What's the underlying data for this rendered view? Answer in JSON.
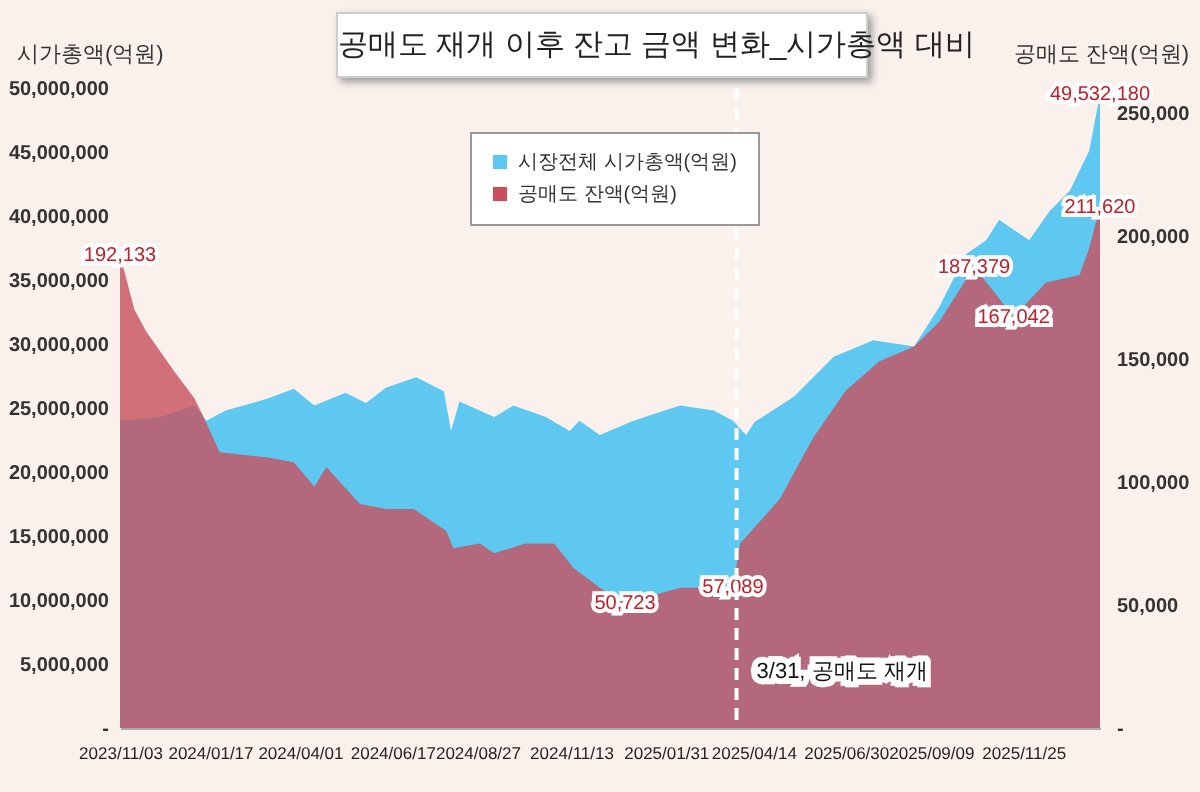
{
  "chart_data": {
    "type": "area",
    "title": "공매도 재개 이후 잔고 금액 변화_시가총액 대비",
    "ylabel": "시가총액(억원)",
    "y2label": "공매도 잔액(억원)",
    "legend": "top",
    "xlim": [
      "2023-11-03",
      "2026-01-28"
    ],
    "xticks": [
      {
        "value": "2023-11-03",
        "label": "2023/11/03"
      },
      {
        "value": "2024-01-17",
        "label": "2024/01/17"
      },
      {
        "value": "2024-04-01",
        "label": "2024/04/01"
      },
      {
        "value": "2024-06-17",
        "label": "2024/06/17"
      },
      {
        "value": "2024-08-27",
        "label": "2024/08/27"
      },
      {
        "value": "2024-11-13",
        "label": "2024/11/13"
      },
      {
        "value": "2025-01-31",
        "label": "2025/01/31"
      },
      {
        "value": "2025-04-14",
        "label": "2025/04/14"
      },
      {
        "value": "2025-06-30",
        "label": "2025/06/30"
      },
      {
        "value": "2025-09-09",
        "label": "2025/09/09"
      },
      {
        "value": "2025-11-25",
        "label": "2025/11/25"
      }
    ],
    "ylim": [
      0,
      50000000
    ],
    "yticks": [
      {
        "value": 0,
        "label": "-"
      },
      {
        "value": 5000000,
        "label": "5,000,000"
      },
      {
        "value": 10000000,
        "label": "10,000,000"
      },
      {
        "value": 15000000,
        "label": "15,000,000"
      },
      {
        "value": 20000000,
        "label": "20,000,000"
      },
      {
        "value": 25000000,
        "label": "25,000,000"
      },
      {
        "value": 30000000,
        "label": "30,000,000"
      },
      {
        "value": 35000000,
        "label": "35,000,000"
      },
      {
        "value": 40000000,
        "label": "40,000,000"
      },
      {
        "value": 45000000,
        "label": "45,000,000"
      },
      {
        "value": 50000000,
        "label": "50,000,000"
      }
    ],
    "y2lim": [
      0,
      260000
    ],
    "y2ticks": [
      {
        "value": 0,
        "label": "-"
      },
      {
        "value": 50000,
        "label": "50,000"
      },
      {
        "value": 100000,
        "label": "100,000"
      },
      {
        "value": 150000,
        "label": "150,000"
      },
      {
        "value": 200000,
        "label": "200,000"
      },
      {
        "value": 250000,
        "label": "250,000"
      }
    ],
    "ref_lines": [
      {
        "axis": "x",
        "value": "2025-03-31",
        "label": "3/31, 공매도 재개",
        "color": "#ffffff",
        "line_style": "dashed"
      }
    ],
    "series": [
      {
        "name": "시장전체 시가총액(억원)",
        "color": "#5ec8f0",
        "x": [
          "2023-11-03",
          "2023-12-06",
          "2024-01-04",
          "2024-01-14",
          "2024-01-30",
          "2024-03-04",
          "2024-03-27",
          "2024-04-13",
          "2024-05-09",
          "2024-05-26",
          "2024-06-12",
          "2024-07-07",
          "2024-07-30",
          "2024-08-05",
          "2024-08-12",
          "2024-09-10",
          "2024-09-26",
          "2024-10-23",
          "2024-11-12",
          "2024-11-20",
          "2024-12-07",
          "2025-01-04",
          "2025-02-12",
          "2025-03-12",
          "2025-03-28",
          "2025-04-08",
          "2025-04-15",
          "2025-05-18",
          "2025-06-20",
          "2025-07-23",
          "2025-08-26",
          "2025-09-16",
          "2025-10-08",
          "2025-10-25",
          "2025-11-05",
          "2025-11-30",
          "2025-12-17",
          "2026-01-03",
          "2026-01-19",
          "2026-01-28"
        ],
        "values": [
          24000000,
          24300000,
          25200000,
          24000000,
          24800000,
          25700000,
          26500000,
          25200000,
          26200000,
          25400000,
          26600000,
          27400000,
          26300000,
          23200000,
          25500000,
          24300000,
          25200000,
          24300000,
          23200000,
          24000000,
          22900000,
          24000000,
          25200000,
          24800000,
          24000000,
          22900000,
          23900000,
          25900000,
          29000000,
          30300000,
          29800000,
          32900000,
          37000000,
          38100000,
          39700000,
          38100000,
          40400000,
          42000000,
          45100000,
          49532180
        ],
        "value_labels": [
          null,
          null,
          null,
          null,
          null,
          null,
          null,
          null,
          null,
          null,
          null,
          null,
          null,
          null,
          null,
          null,
          null,
          null,
          null,
          null,
          null,
          null,
          null,
          null,
          null,
          null,
          null,
          null,
          null,
          null,
          null,
          null,
          null,
          null,
          null,
          null,
          null,
          null,
          null,
          "49,532,180"
        ]
      },
      {
        "name": "공매도 잔액(억원)",
        "color": "#c8505e",
        "axis": "y2",
        "x": [
          "2023-11-03",
          "2023-11-15",
          "2023-11-25",
          "2023-12-18",
          "2024-01-04",
          "2024-01-14",
          "2024-01-25",
          "2024-03-04",
          "2024-03-27",
          "2024-04-13",
          "2024-04-23",
          "2024-05-21",
          "2024-06-12",
          "2024-07-05",
          "2024-08-01",
          "2024-08-07",
          "2024-08-29",
          "2024-09-10",
          "2024-10-06",
          "2024-10-30",
          "2024-11-15",
          "2024-12-07",
          "2024-12-28",
          "2025-02-12",
          "2025-03-28",
          "2025-04-03",
          "2025-05-06",
          "2025-06-03",
          "2025-06-30",
          "2025-07-28",
          "2025-08-26",
          "2025-09-16",
          "2025-10-15",
          "2025-11-17",
          "2025-12-14",
          "2026-01-11",
          "2026-01-19",
          "2026-01-28"
        ],
        "values": [
          192133,
          170000,
          161000,
          145000,
          134000,
          124000,
          112000,
          110000,
          108000,
          98000,
          106000,
          91000,
          89000,
          89000,
          80000,
          73000,
          75000,
          71000,
          75000,
          75000,
          65000,
          57000,
          50723,
          57000,
          57089,
          75000,
          93000,
          118000,
          137000,
          149000,
          155000,
          165000,
          187379,
          167042,
          181000,
          184000,
          195000,
          211620
        ],
        "value_labels": [
          "192,133",
          null,
          null,
          null,
          null,
          null,
          null,
          null,
          null,
          null,
          null,
          null,
          null,
          null,
          null,
          null,
          null,
          null,
          null,
          null,
          null,
          null,
          "50,723",
          null,
          "57,089",
          null,
          null,
          null,
          null,
          null,
          null,
          null,
          "187,379",
          "167,042",
          null,
          null,
          null,
          "211,620"
        ]
      }
    ]
  }
}
